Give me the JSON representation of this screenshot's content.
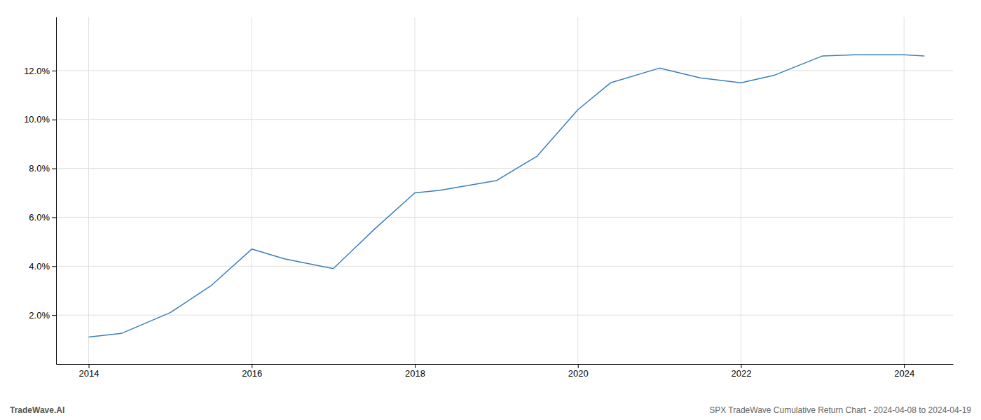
{
  "chart_data": {
    "type": "line",
    "x": [
      2014.0,
      2014.4,
      2015.0,
      2015.5,
      2016.0,
      2016.4,
      2017.0,
      2017.5,
      2018.0,
      2018.3,
      2019.0,
      2019.5,
      2020.0,
      2020.4,
      2021.0,
      2021.5,
      2022.0,
      2022.4,
      2023.0,
      2023.4,
      2024.0,
      2024.25
    ],
    "values": [
      1.1,
      1.25,
      2.1,
      3.2,
      4.7,
      4.3,
      3.9,
      5.5,
      7.0,
      7.1,
      7.5,
      8.5,
      10.4,
      11.5,
      12.1,
      11.7,
      11.5,
      11.8,
      12.6,
      12.65,
      12.65,
      12.6
    ],
    "color": "#3a7ebf",
    "xlim": [
      2013.6,
      2024.6
    ],
    "ylim": [
      0.0,
      14.2
    ],
    "xticks": [
      2014,
      2016,
      2018,
      2020,
      2022,
      2024
    ],
    "yticks": [
      {
        "value": 2.0,
        "label": "2.0%"
      },
      {
        "value": 4.0,
        "label": "4.0%"
      },
      {
        "value": 6.0,
        "label": "6.0%"
      },
      {
        "value": 8.0,
        "label": "8.0%"
      },
      {
        "value": 10.0,
        "label": "10.0%"
      },
      {
        "value": 12.0,
        "label": "12.0%"
      }
    ],
    "grid": true,
    "annotations": [
      "TradeWave.AI",
      "SPX TradeWave Cumulative Return Chart - 2024-04-08 to 2024-04-19"
    ]
  }
}
